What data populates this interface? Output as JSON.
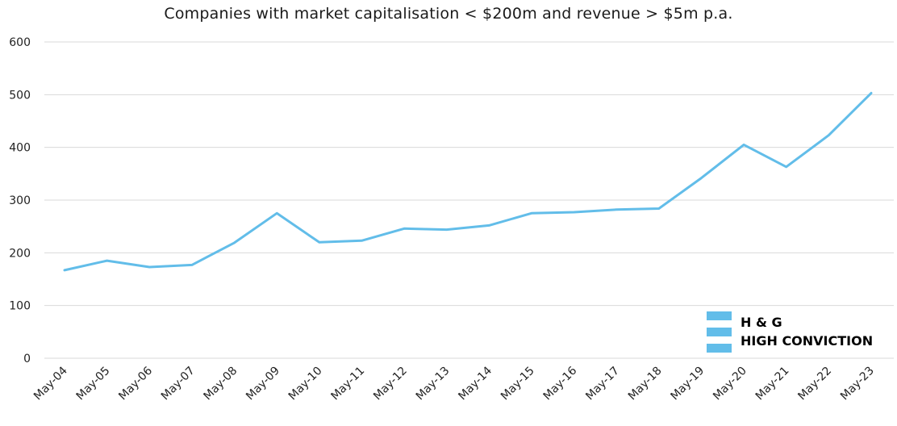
{
  "chart_data": {
    "type": "line",
    "title": "Companies with market capitalisation < $200m and revenue > $5m p.a.",
    "categories": [
      "May-04",
      "May-05",
      "May-06",
      "May-07",
      "May-08",
      "May-09",
      "May-10",
      "May-11",
      "May-12",
      "May-13",
      "May-14",
      "May-15",
      "May-16",
      "May-17",
      "May-18",
      "May-19",
      "May-20",
      "May-21",
      "May-22",
      "May-23"
    ],
    "series": [
      {
        "values": [
          167,
          185,
          173,
          177,
          219,
          275,
          220,
          223,
          246,
          244,
          252,
          275,
          277,
          282,
          284,
          342,
          405,
          363,
          423,
          503
        ]
      }
    ],
    "ylim": [
      0,
      600
    ],
    "yticks": [
      "0",
      "100",
      "200",
      "300",
      "400",
      "500",
      "600"
    ],
    "grid": true,
    "line_color": "#62bde9"
  },
  "logo": {
    "line1": "H & G",
    "line2": "HIGH CONVICTION",
    "bar_color": "#62bde9"
  }
}
